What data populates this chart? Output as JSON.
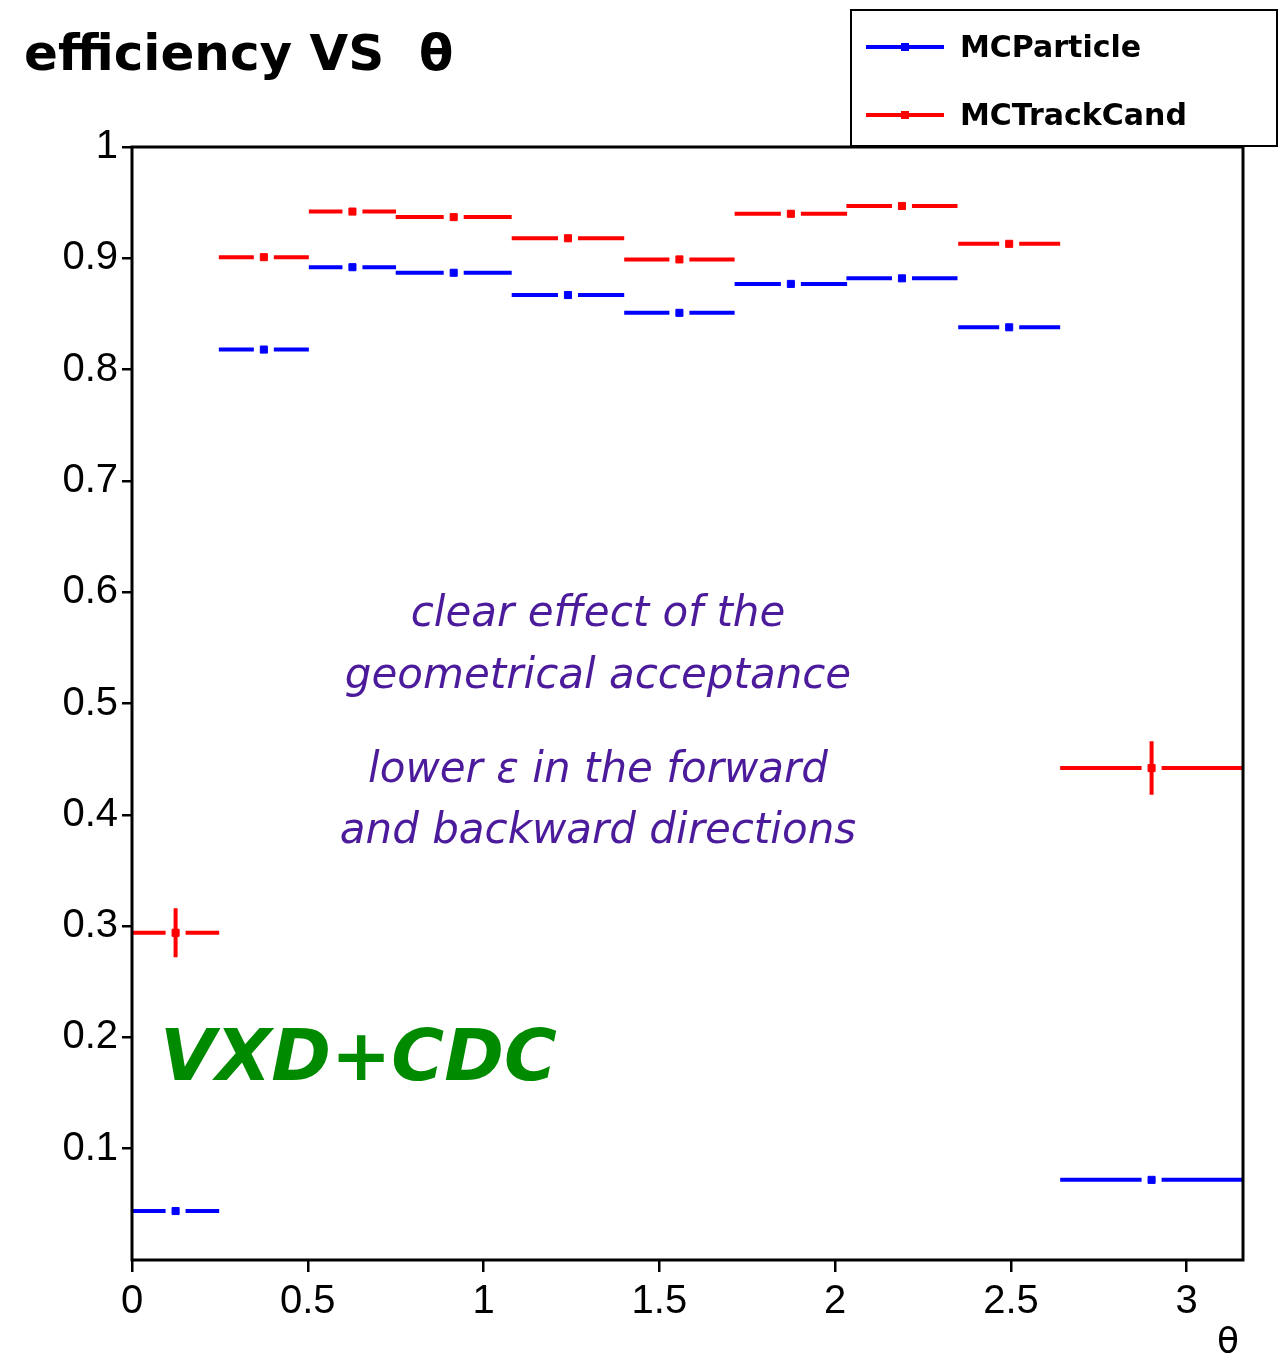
{
  "chart_data": {
    "type": "scatter",
    "title": "efficiency VS  θ",
    "xlabel": "θ",
    "x": [
      0.124,
      0.375,
      0.627,
      0.915,
      1.24,
      1.557,
      1.874,
      2.19,
      2.495,
      2.9
    ],
    "series": [
      {
        "name": "MCParticle",
        "color": "#0000ff",
        "values": [
          0.044,
          0.818,
          0.892,
          0.887,
          0.867,
          0.851,
          0.877,
          0.882,
          0.838,
          0.072
        ],
        "xerrors": [
          0.124,
          0.128,
          0.124,
          0.165,
          0.16,
          0.157,
          0.16,
          0.158,
          0.145,
          0.26
        ]
      },
      {
        "name": "MCTrackCand",
        "color": "#ff0000",
        "values": [
          0.294,
          0.901,
          0.942,
          0.937,
          0.918,
          0.899,
          0.94,
          0.947,
          0.913,
          0.442
        ],
        "xerrors": [
          0.124,
          0.128,
          0.124,
          0.165,
          0.16,
          0.157,
          0.16,
          0.158,
          0.145,
          0.26
        ],
        "errors": [
          0.022,
          null,
          null,
          null,
          null,
          null,
          null,
          null,
          null,
          0.024
        ]
      }
    ],
    "xlim": [
      0,
      3.16
    ],
    "xticks": [
      0,
      0.5,
      1,
      1.5,
      2,
      2.5,
      3
    ],
    "ylim": [
      0,
      1
    ],
    "yticks": [
      0.1,
      0.2,
      0.3,
      0.4,
      0.5,
      0.6,
      0.7,
      0.8,
      0.9,
      1
    ],
    "legend": "top right",
    "marker": "square",
    "annotations": [
      "clear effect of the",
      "geometrical acceptance",
      "lower ε in the forward",
      "and backward directions",
      "VXD+CDC"
    ]
  }
}
